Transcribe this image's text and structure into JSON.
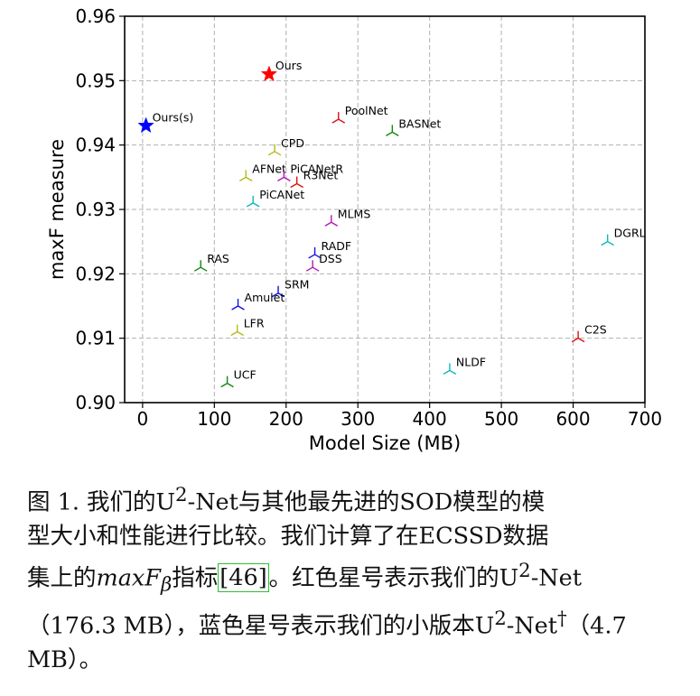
{
  "chart_data": {
    "type": "scatter",
    "xlabel": "Model Size (MB)",
    "ylabel": "maxF measure",
    "xlim": [
      -25,
      700
    ],
    "ylim": [
      0.9,
      0.96
    ],
    "xticks": [
      "0",
      "100",
      "200",
      "300",
      "400",
      "500",
      "600",
      "700"
    ],
    "yticks": [
      "0.90",
      "0.91",
      "0.92",
      "0.93",
      "0.94",
      "0.95",
      "0.96"
    ],
    "xtick_values": [
      0,
      100,
      200,
      300,
      400,
      500,
      600,
      700
    ],
    "ytick_values": [
      0.9,
      0.91,
      0.92,
      0.93,
      0.94,
      0.95,
      0.96
    ],
    "grid": true,
    "points": [
      {
        "label": "Ours",
        "x": 176.3,
        "y": 0.951,
        "marker": "star",
        "color": "#ff0000"
      },
      {
        "label": "Ours(s)",
        "x": 4.7,
        "y": 0.943,
        "marker": "star",
        "color": "#0000ff"
      },
      {
        "label": "PoolNet",
        "x": 273,
        "y": 0.944,
        "marker": "tri",
        "color": "#dd1111"
      },
      {
        "label": "BASNet",
        "x": 348,
        "y": 0.942,
        "marker": "tri",
        "color": "#118811"
      },
      {
        "label": "CPD",
        "x": 184,
        "y": 0.939,
        "marker": "tri",
        "color": "#b8b81a"
      },
      {
        "label": "AFNet",
        "x": 144,
        "y": 0.935,
        "marker": "tri",
        "color": "#b8b81a"
      },
      {
        "label": "PiCANetR",
        "x": 197,
        "y": 0.935,
        "marker": "tri",
        "color": "#b418b4"
      },
      {
        "label": "R3Net",
        "x": 215,
        "y": 0.934,
        "marker": "tri",
        "color": "#dd1111"
      },
      {
        "label": "PiCANet",
        "x": 154,
        "y": 0.931,
        "marker": "tri",
        "color": "#11b8b8"
      },
      {
        "label": "MLMS",
        "x": 263,
        "y": 0.928,
        "marker": "tri",
        "color": "#b418b4"
      },
      {
        "label": "DGRL",
        "x": 648,
        "y": 0.925,
        "marker": "tri",
        "color": "#11b8b8"
      },
      {
        "label": "RADF",
        "x": 240,
        "y": 0.923,
        "marker": "tri",
        "color": "#1111dd"
      },
      {
        "label": "DSS",
        "x": 237,
        "y": 0.921,
        "marker": "tri",
        "color": "#b418b4"
      },
      {
        "label": "RAS",
        "x": 81,
        "y": 0.921,
        "marker": "tri",
        "color": "#118811"
      },
      {
        "label": "SRM",
        "x": 189,
        "y": 0.917,
        "marker": "tri",
        "color": "#1111dd"
      },
      {
        "label": "Amulet",
        "x": 133,
        "y": 0.915,
        "marker": "tri",
        "color": "#1111dd"
      },
      {
        "label": "LFR",
        "x": 132,
        "y": 0.911,
        "marker": "tri",
        "color": "#b8b81a"
      },
      {
        "label": "C2S",
        "x": 607,
        "y": 0.91,
        "marker": "tri",
        "color": "#dd1111"
      },
      {
        "label": "NLDF",
        "x": 428,
        "y": 0.905,
        "marker": "tri",
        "color": "#11b8b8"
      },
      {
        "label": "UCF",
        "x": 118,
        "y": 0.903,
        "marker": "tri",
        "color": "#118811"
      }
    ]
  },
  "caption": {
    "l1a": "图 1.   我们的U",
    "l1sup": "2",
    "l1b": "-Net与其他最先进的SOD模型的模",
    "l2": "型大小和性能进行比较。我们计算了在ECSSD数据",
    "l3a": "集上的",
    "l3math": "maxF",
    "l3mathsub": "β",
    "l3b": "指标",
    "l3cite": "[46]",
    "l3c": "。红色星号表示我们的U",
    "l3sup": "2",
    "l3d": "-Net",
    "l4a": "（176.3 MB），蓝色星号表示我们的小版本U",
    "l4sup": "2",
    "l4b": "-Net",
    "l4dag": "†",
    "l4c": "（4.7",
    "l5": "MB）。"
  }
}
